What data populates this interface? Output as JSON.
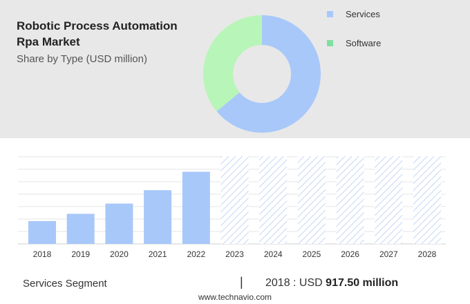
{
  "header": {
    "title": "Robotic Process Automation Rpa Market",
    "subtitle": "Share by Type (USD million)"
  },
  "donut": {
    "type": "donut",
    "segments": [
      {
        "name": "Services",
        "share": 0.64,
        "color": "#a8c8fa"
      },
      {
        "name": "Software",
        "share": 0.36,
        "color": "#b8f5b8"
      }
    ]
  },
  "legend": {
    "items": [
      {
        "label": "Services",
        "color": "#a8c8fa"
      },
      {
        "label": "Software",
        "color": "#80e0a0"
      }
    ]
  },
  "chart_data": {
    "type": "bar",
    "categories": [
      "2018",
      "2019",
      "2020",
      "2021",
      "2022",
      "2023",
      "2024",
      "2025",
      "2026",
      "2027",
      "2028"
    ],
    "values": [
      917.5,
      1210,
      1620,
      2160,
      2900,
      null,
      null,
      null,
      null,
      null,
      null
    ],
    "forecast_categories": [
      "2023",
      "2024",
      "2025",
      "2026",
      "2027",
      "2028"
    ],
    "ylim": [
      0,
      3500
    ],
    "grid": true,
    "bar_color": "#a8c8fa"
  },
  "footer": {
    "segment_label": "Services Segment",
    "separator": "|",
    "value_prefix": "2018 : USD",
    "value_bold": "917.50 million",
    "source": "www.technavio.com"
  }
}
